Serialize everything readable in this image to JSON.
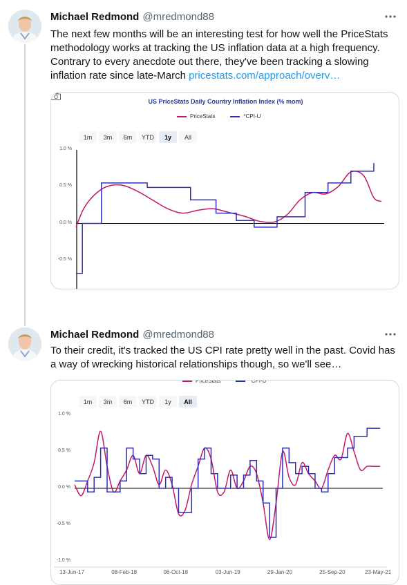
{
  "tweets": [
    {
      "author": {
        "name": "Michael Redmond",
        "handle": "@mredmond88"
      },
      "text": "The next few months will be an interesting test for how well the PriceStats methodology works at tracking the US inflation data at a high frequency. Contrary to every anecdote out there, they've been tracking a slowing inflation rate since late-March ",
      "link": "pricestats.com/approach/overv…",
      "chart": {
        "title": "US PriceStats Daily Country Inflation Index (% mom)",
        "range_buttons": [
          "1m",
          "3m",
          "6m",
          "YTD",
          "1y",
          "All"
        ],
        "selected_range": "1y"
      }
    },
    {
      "author": {
        "name": "Michael Redmond",
        "handle": "@mredmond88"
      },
      "text": "To their credit, it's tracked the US CPI rate pretty well in the past. Covid has a way of wrecking historical relationships though, so we'll see…",
      "chart": {
        "range_buttons": [
          "1m",
          "3m",
          "6m",
          "YTD",
          "1y",
          "All"
        ],
        "selected_range": "All",
        "x_tick_labels": [
          "13-Jun-17",
          "08-Feb-18",
          "06-Oct-18",
          "03-Jun-19",
          "29-Jan-20",
          "25-Sep-20",
          "23-May-21"
        ]
      }
    }
  ],
  "legend": {
    "series_a": "PriceStats",
    "series_b": "*CPI-U"
  },
  "colors": {
    "pricestats": "#c2186b",
    "cpi": "#2f2fb6",
    "link": "#1d9bf0"
  },
  "chart_data": [
    {
      "type": "line",
      "title": "US PriceStats Daily Country Inflation Index (% mom)",
      "ylim": [
        -1.0,
        1.0
      ],
      "y_tick_labels": [
        "1.0 %",
        "0.5 %",
        "0.0 %",
        "-0.5 %"
      ],
      "y_ticks": [
        1.0,
        0.5,
        0.0,
        -0.5
      ],
      "x_range": [
        0,
        12
      ],
      "series": [
        {
          "name": "PriceStats",
          "x": [
            0,
            0.3,
            0.7,
            1.2,
            1.8,
            2.4,
            3.0,
            3.6,
            4.2,
            4.8,
            5.4,
            6.0,
            6.6,
            7.2,
            7.8,
            8.3,
            8.8,
            9.3,
            9.8,
            10.3,
            10.8,
            11.3,
            11.7,
            12.0
          ],
          "values": [
            -0.05,
            0.2,
            0.38,
            0.5,
            0.52,
            0.44,
            0.32,
            0.2,
            0.14,
            0.18,
            0.2,
            0.15,
            0.1,
            0.03,
            0.02,
            0.12,
            0.32,
            0.42,
            0.4,
            0.5,
            0.7,
            0.65,
            0.35,
            0.3
          ]
        },
        {
          "name": "*CPI-U",
          "x": [
            0,
            0.25,
            0.25,
            1.0,
            1.0,
            2.8,
            2.8,
            4.5,
            4.5,
            5.5,
            5.5,
            6.3,
            6.3,
            7.0,
            7.0,
            7.9,
            7.9,
            9.0,
            9.0,
            9.9,
            9.9,
            10.8,
            10.8,
            11.7,
            11.7
          ],
          "values": [
            -0.68,
            -0.68,
            0.0,
            0.0,
            0.55,
            0.55,
            0.49,
            0.49,
            0.32,
            0.32,
            0.14,
            0.14,
            0.04,
            0.04,
            -0.05,
            -0.05,
            0.09,
            0.09,
            0.42,
            0.42,
            0.55,
            0.55,
            0.71,
            0.71,
            0.82
          ]
        }
      ]
    },
    {
      "type": "line",
      "ylim": [
        -1.0,
        1.0
      ],
      "y_tick_labels": [
        "1.0 %",
        "0.5 %",
        "0.0 %",
        "-0.5 %",
        "-1.0 %"
      ],
      "y_ticks": [
        1.0,
        0.5,
        0.0,
        -0.5,
        -1.0
      ],
      "x_range": [
        0,
        47
      ],
      "x_tick_positions": [
        0,
        8,
        16,
        24,
        32,
        40,
        47
      ],
      "x_tick_labels": [
        "13-Jun-17",
        "08-Feb-18",
        "06-Oct-18",
        "03-Jun-19",
        "29-Jan-20",
        "25-Sep-20",
        "23-May-21"
      ],
      "series": [
        {
          "name": "PriceStats",
          "x": [
            0,
            1,
            2,
            3,
            4,
            5,
            6,
            7,
            8,
            9,
            10,
            11,
            12,
            13,
            14,
            15,
            16,
            17,
            18,
            19,
            20,
            21,
            22,
            23,
            24,
            25,
            26,
            27,
            28,
            29,
            30,
            31,
            32,
            33,
            34,
            35,
            36,
            37,
            38,
            39,
            40,
            41,
            42,
            43,
            44,
            45,
            46,
            47
          ],
          "values": [
            0.05,
            -0.1,
            0.1,
            0.35,
            0.78,
            0.3,
            -0.05,
            0.1,
            0.25,
            0.45,
            0.2,
            0.45,
            0.3,
            0.05,
            0.25,
            0.05,
            -0.35,
            -0.3,
            0.05,
            0.3,
            0.55,
            0.4,
            -0.05,
            -0.05,
            0.25,
            0.0,
            0.1,
            0.3,
            0.2,
            -0.2,
            -0.7,
            -0.2,
            0.5,
            0.15,
            0.05,
            0.35,
            0.2,
            0.1,
            0.0,
            0.25,
            0.45,
            0.4,
            0.75,
            0.5,
            0.25,
            0.3,
            0.3,
            0.3
          ]
        },
        {
          "name": "*CPI-U",
          "x": [
            0,
            1,
            2,
            3,
            4,
            5,
            6,
            7,
            8,
            9,
            10,
            11,
            12,
            13,
            14,
            15,
            16,
            17,
            18,
            19,
            20,
            21,
            22,
            23,
            24,
            25,
            26,
            27,
            28,
            29,
            30,
            31,
            32,
            33,
            34,
            35,
            36,
            37,
            38,
            39,
            40,
            41,
            42,
            43,
            44,
            45,
            46,
            47
          ],
          "values": [
            0.1,
            0.1,
            -0.05,
            0.15,
            0.55,
            -0.05,
            -0.05,
            0.1,
            0.55,
            0.4,
            0.2,
            0.45,
            0.4,
            0.0,
            0.15,
            0.0,
            -0.33,
            -0.33,
            0.0,
            0.4,
            0.55,
            0.2,
            0.0,
            0.0,
            0.18,
            0.0,
            0.18,
            0.38,
            0.1,
            -0.2,
            -0.67,
            0.0,
            0.55,
            0.35,
            0.2,
            0.3,
            0.2,
            0.0,
            -0.05,
            0.2,
            0.42,
            0.42,
            0.55,
            0.71,
            0.71,
            0.82,
            0.82,
            0.82
          ]
        }
      ]
    }
  ]
}
